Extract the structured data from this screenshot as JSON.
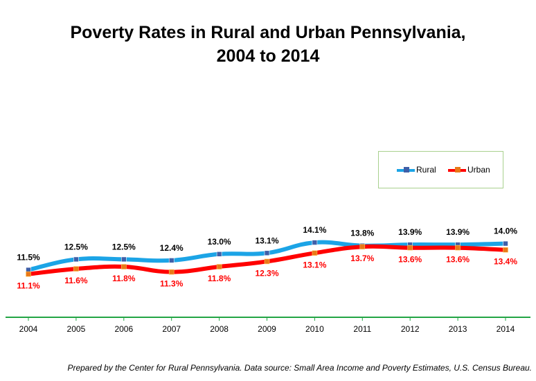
{
  "chart_data": {
    "type": "line",
    "title_line1": "Poverty Rates in Rural and Urban Pennsylvania,",
    "title_line2": "2004 to 2014",
    "categories": [
      "2004",
      "2005",
      "2006",
      "2007",
      "2008",
      "2009",
      "2010",
      "2011",
      "2012",
      "2013",
      "2014"
    ],
    "series": [
      {
        "name": "Rural",
        "color": "#1ca4e6",
        "marker": "#3f5fa8",
        "values": [
          11.5,
          12.5,
          12.5,
          12.4,
          13.0,
          13.1,
          14.1,
          13.8,
          13.9,
          13.9,
          14.0
        ],
        "labels": [
          "11.5%",
          "12.5%",
          "12.5%",
          "12.4%",
          "13.0%",
          "13.1%",
          "14.1%",
          "13.8%",
          "13.9%",
          "13.9%",
          "14.0%"
        ]
      },
      {
        "name": "Urban",
        "color": "#ff0000",
        "marker": "#e97818",
        "values": [
          11.1,
          11.6,
          11.8,
          11.3,
          11.8,
          12.3,
          13.1,
          13.7,
          13.6,
          13.6,
          13.4
        ],
        "labels": [
          "11.1%",
          "11.6%",
          "11.8%",
          "11.3%",
          "11.8%",
          "12.3%",
          "13.1%",
          "13.7%",
          "13.6%",
          "13.6%",
          "13.4%"
        ]
      }
    ],
    "ylim": [
      7.0,
      14.5
    ],
    "axis_color": "#22a544",
    "legend_position": "right",
    "grid": false,
    "xlabel": "",
    "ylabel": ""
  },
  "source_note": "Prepared by the Center for Rural Pennsylvania. Data source: Small Area Income and Poverty Estimates, U.S. Census Bureau."
}
